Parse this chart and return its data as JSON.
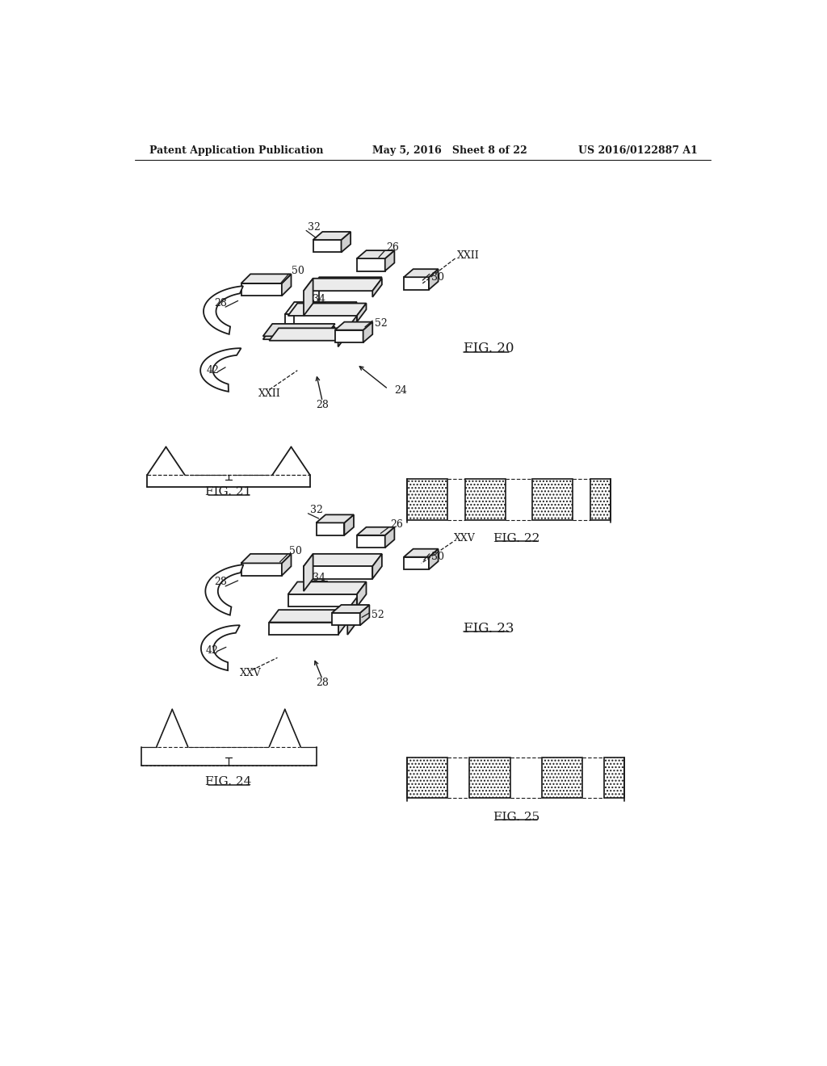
{
  "bg_color": "#ffffff",
  "header_left": "Patent Application Publication",
  "header_mid": "May 5, 2016   Sheet 8 of 22",
  "header_right": "US 2016/0122887 A1",
  "fig20_label": "FIG. 20",
  "fig21_label": "FIG. 21",
  "fig22_label": "FIG. 22",
  "fig23_label": "FIG. 23",
  "fig24_label": "FIG. 24",
  "fig25_label": "FIG. 25",
  "line_color": "#1a1a1a"
}
